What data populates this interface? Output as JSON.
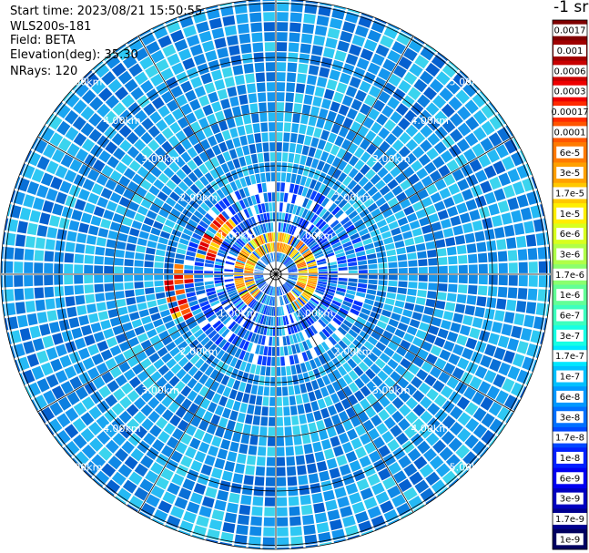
{
  "info": {
    "start_time": "Start time: 2023/08/21 15:50:55",
    "instrument": "WLS200s-181",
    "field": "Field: BETA",
    "elevation": "Elevation(deg): 35.30",
    "nrays": "NRays: 120"
  },
  "colorbar": {
    "unit_label": "-1 sr",
    "levels": [
      {
        "label": "0.0017",
        "color": "#7f0000"
      },
      {
        "label": "0.001",
        "color": "#a00000"
      },
      {
        "label": "0.0006",
        "color": "#c80000"
      },
      {
        "label": "0.0003",
        "color": "#ee0000"
      },
      {
        "label": "0.00017",
        "color": "#ff2a00"
      },
      {
        "label": "0.0001",
        "color": "#ff5500"
      },
      {
        "label": "6e-5",
        "color": "#ff7a00"
      },
      {
        "label": "3e-5",
        "color": "#ffa000"
      },
      {
        "label": "1.7e-5",
        "color": "#ffc800"
      },
      {
        "label": "1e-5",
        "color": "#ffee00"
      },
      {
        "label": "6e-6",
        "color": "#d8ff1e"
      },
      {
        "label": "3e-6",
        "color": "#b0ff48"
      },
      {
        "label": "1.7e-6",
        "color": "#8aff6e"
      },
      {
        "label": "1e-6",
        "color": "#62ff96"
      },
      {
        "label": "6e-7",
        "color": "#3cffbe"
      },
      {
        "label": "3e-7",
        "color": "#16ffe4"
      },
      {
        "label": "1.7e-7",
        "color": "#00e6ff"
      },
      {
        "label": "1e-7",
        "color": "#00c0ff"
      },
      {
        "label": "6e-8",
        "color": "#0098ff"
      },
      {
        "label": "3e-8",
        "color": "#0070ff"
      },
      {
        "label": "1.7e-8",
        "color": "#0048ff"
      },
      {
        "label": "1e-8",
        "color": "#0020ff"
      },
      {
        "label": "6e-9",
        "color": "#0000f0"
      },
      {
        "label": "3e-9",
        "color": "#0000c0"
      },
      {
        "label": "1.7e-9",
        "color": "#000090"
      },
      {
        "label": "1e-9",
        "color": "#000060"
      }
    ]
  },
  "chart_data": {
    "type": "heatmap",
    "projection": "polar (PPI scan)",
    "range_rings_km": [
      1,
      2,
      3,
      4,
      5
    ],
    "ring_labels": [
      "1.00km",
      "2.00km",
      "3.00km",
      "4.00km",
      "5.00km"
    ],
    "nrays": 120,
    "grid": true,
    "colorscale": "jet (log)",
    "background_level": "1e-7",
    "features": [
      {
        "description": "high backscatter ring near 0.5 km",
        "level": "3e-5"
      },
      {
        "description": "returns west of center at ~1.0-1.8 km",
        "level": "0.0003"
      }
    ]
  }
}
